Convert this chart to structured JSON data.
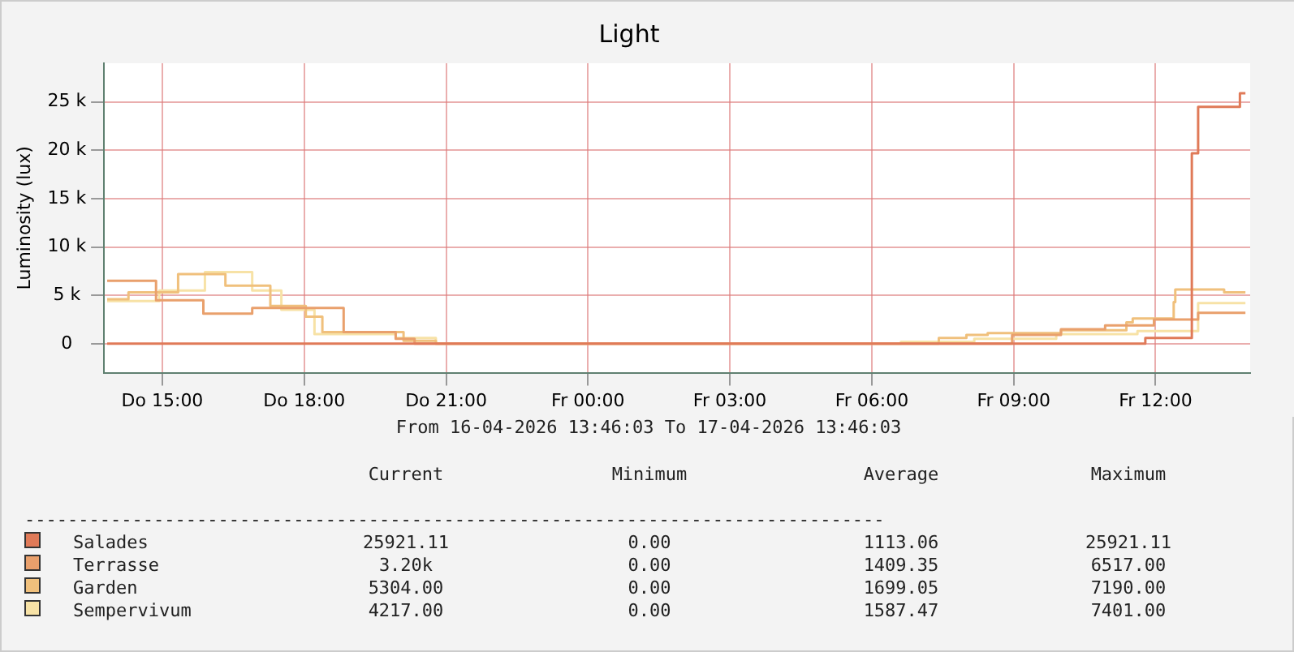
{
  "chart_data": {
    "type": "step",
    "title": "Light",
    "ylabel": "Luminosity (lux)",
    "xlim": [
      "2026-04-16T13:46",
      "2026-04-17T14:00"
    ],
    "ylim": [
      -3000,
      29000
    ],
    "xticks": [
      {
        "value": "2026-04-16T15:00",
        "label": "Do 15:00"
      },
      {
        "value": "2026-04-16T18:00",
        "label": "Do 18:00"
      },
      {
        "value": "2026-04-16T21:00",
        "label": "Do 21:00"
      },
      {
        "value": "2026-04-17T00:00",
        "label": "Fr 00:00"
      },
      {
        "value": "2026-04-17T03:00",
        "label": "Fr 03:00"
      },
      {
        "value": "2026-04-17T06:00",
        "label": "Fr 06:00"
      },
      {
        "value": "2026-04-17T09:00",
        "label": "Fr 09:00"
      },
      {
        "value": "2026-04-17T12:00",
        "label": "Fr 12:00"
      }
    ],
    "yticks": [
      0,
      {
        "value": 5000,
        "label": "5 k"
      },
      {
        "value": 10000,
        "label": "10 k"
      },
      {
        "value": 15000,
        "label": "15 k"
      },
      {
        "value": 20000,
        "label": "20 k"
      },
      {
        "value": 25000,
        "label": "25 k"
      }
    ],
    "grid": true,
    "legend": "bottom",
    "series": [
      {
        "name": "Salades",
        "color": "#e07a58",
        "x": [
          "2026-04-16T13:50",
          "2026-04-17T11:47",
          "2026-04-17T12:46",
          "2026-04-17T12:54",
          "2026-04-17T13:47",
          "2026-04-17T13:54"
        ],
        "values": [
          0,
          600,
          19700,
          24500,
          25900,
          25900
        ]
      },
      {
        "name": "Terrasse",
        "color": "#e9a06c",
        "x": [
          "2026-04-16T13:50",
          "2026-04-16T14:52",
          "2026-04-16T15:52",
          "2026-04-16T16:54",
          "2026-04-16T18:50",
          "2026-04-16T19:56",
          "2026-04-16T20:20",
          "2026-04-17T08:58",
          "2026-04-17T10:00",
          "2026-04-17T10:56",
          "2026-04-17T11:58",
          "2026-04-17T12:54",
          "2026-04-17T13:54"
        ],
        "values": [
          6500,
          4500,
          3100,
          3700,
          1200,
          500,
          0,
          900,
          1500,
          1900,
          2500,
          3200,
          3200
        ]
      },
      {
        "name": "Garden",
        "color": "#f0c07c",
        "x": [
          "2026-04-16T13:50",
          "2026-04-16T14:17",
          "2026-04-16T15:20",
          "2026-04-16T16:20",
          "2026-04-16T17:17",
          "2026-04-16T18:02",
          "2026-04-16T18:23",
          "2026-04-16T20:06",
          "2026-04-16T20:47",
          "2026-04-17T07:25",
          "2026-04-17T08:00",
          "2026-04-17T08:27",
          "2026-04-17T10:00",
          "2026-04-17T11:23",
          "2026-04-17T11:31",
          "2026-04-17T12:23",
          "2026-04-17T12:25",
          "2026-04-17T13:27",
          "2026-04-17T13:54"
        ],
        "values": [
          4600,
          5300,
          7200,
          6000,
          3900,
          2800,
          1200,
          300,
          0,
          600,
          900,
          1100,
          1400,
          2200,
          2600,
          4300,
          5600,
          5300,
          5300
        ]
      },
      {
        "name": "Sempervivum",
        "color": "#f7e2a6",
        "x": [
          "2026-04-16T13:50",
          "2026-04-16T14:56",
          "2026-04-16T15:54",
          "2026-04-16T16:54",
          "2026-04-16T17:31",
          "2026-04-16T18:13",
          "2026-04-16T19:56",
          "2026-04-16T20:47",
          "2026-04-17T06:37",
          "2026-04-17T08:10",
          "2026-04-17T09:54",
          "2026-04-17T11:37",
          "2026-04-17T12:54",
          "2026-04-17T13:54"
        ],
        "values": [
          4400,
          5500,
          7400,
          5500,
          3500,
          1000,
          600,
          0,
          200,
          500,
          1000,
          1300,
          4200,
          4200
        ]
      }
    ],
    "annotations": [
      "From 16-04-2026 13:46:03 To 17-04-2026 13:46:03",
      "Current",
      "Minimum",
      "Average",
      "Maximum",
      "--------------------------------------------------------------------------------",
      "25921.11",
      "0.00",
      "1113.06",
      "25921.11",
      "3.20k",
      "0.00",
      "1409.35",
      "6517.00",
      "5304.00",
      "0.00",
      "1699.05",
      "7190.00",
      "4217.00",
      "0.00",
      "1587.47",
      "7401.00"
    ]
  }
}
